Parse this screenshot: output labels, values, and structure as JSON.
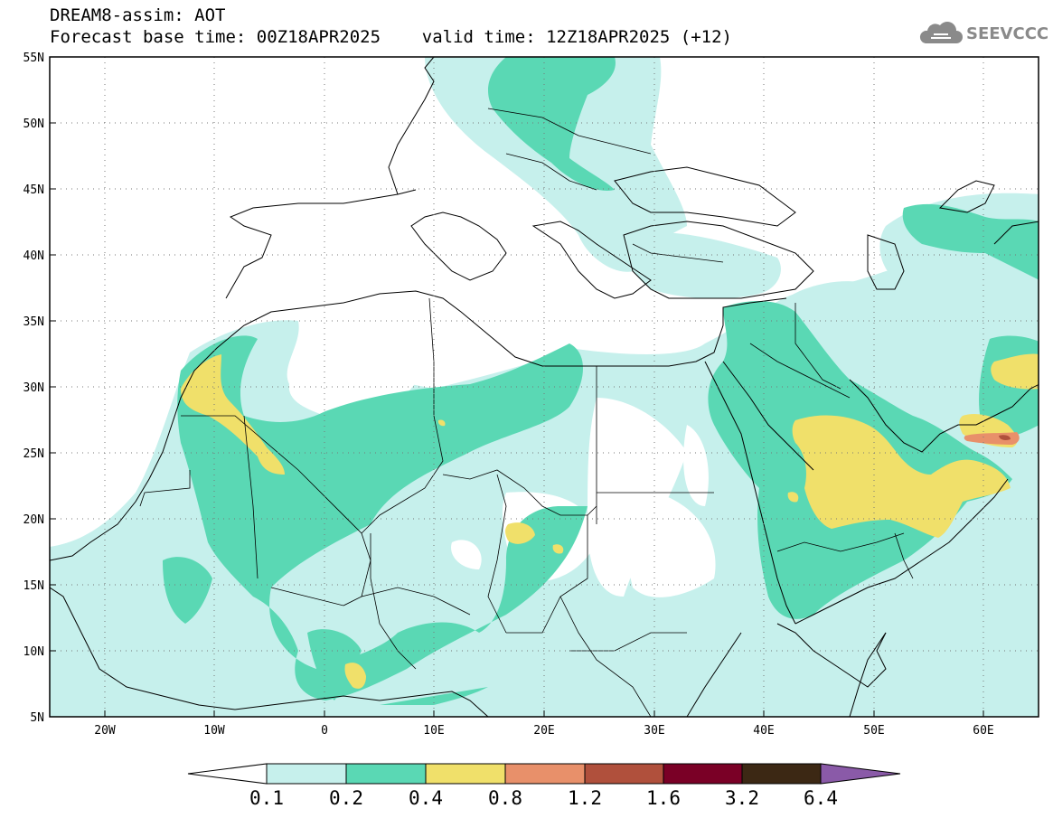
{
  "title": {
    "line1": "DREAM8-assim: AOT",
    "line2": "Forecast base time: 00Z18APR2025    valid time: 12Z18APR2025 (+12)"
  },
  "logo": {
    "text": "SEEVCCC",
    "icon": "cloud-icon"
  },
  "map": {
    "projection": "lat-lon",
    "lon_range": [
      -25,
      65
    ],
    "lat_range": [
      5,
      55
    ],
    "lat_labels": [
      "55N",
      "50N",
      "45N",
      "40N",
      "35N",
      "30N",
      "25N",
      "20N",
      "15N",
      "10N",
      "5N"
    ],
    "lon_labels": [
      "20W",
      "10W",
      "0",
      "10E",
      "20E",
      "30E",
      "40E",
      "50E",
      "60E"
    ],
    "grid": "dotted"
  },
  "colorbar": {
    "labels": [
      "0.1",
      "0.2",
      "0.4",
      "0.8",
      "1.2",
      "1.6",
      "3.2",
      "6.4"
    ],
    "colors": [
      "#c6f0ec",
      "#5ad8b4",
      "#f0e06a",
      "#e8906a",
      "#b0503c",
      "#7a0026",
      "#3c2814",
      "#8a5aa8"
    ]
  }
}
